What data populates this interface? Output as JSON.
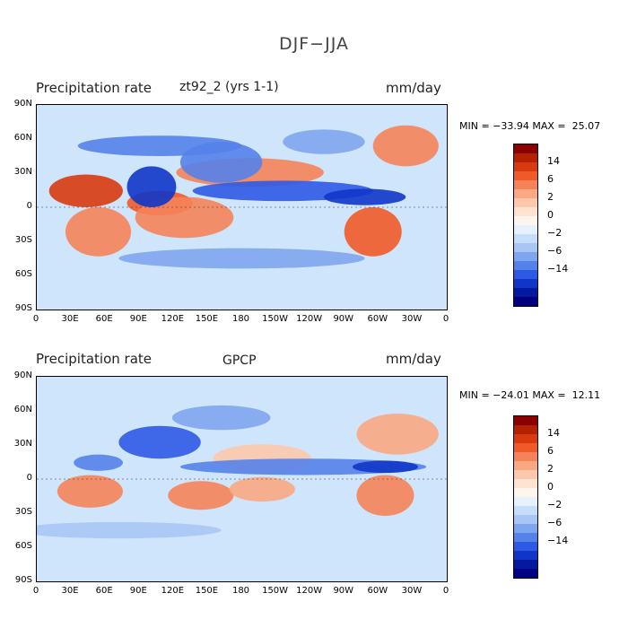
{
  "figure_title": "DJF−JJA",
  "colors": {
    "levels": [
      "#8b0000",
      "#b22200",
      "#d83a10",
      "#f05a28",
      "#f5835a",
      "#f9a882",
      "#fcc8ac",
      "#fde3d0",
      "#fff5ec",
      "#e5f1fd",
      "#c6def9",
      "#a7c6f4",
      "#7ea6ee",
      "#5582ea",
      "#2d5ae4",
      "#0f36c8",
      "#041a9e",
      "#000080"
    ]
  },
  "chart_data": [
    {
      "type": "heatmap",
      "title": "Precipitation rate",
      "subtitle": "zt92_2 (yrs 1-1)",
      "units": "mm/day",
      "stats": "MIN = −33.94 MAX =  25.07",
      "y_ticks": [
        "90N",
        "60N",
        "30N",
        "0",
        "30S",
        "60S",
        "90S"
      ],
      "x_ticks": [
        "0",
        "30E",
        "60E",
        "90E",
        "120E",
        "150E",
        "180",
        "150W",
        "120W",
        "90W",
        "60W",
        "30W",
        "0"
      ],
      "colorbar_labels": [
        "14",
        "6",
        "2",
        "0",
        "−2",
        "−6",
        "−14"
      ]
    },
    {
      "type": "heatmap",
      "title": "Precipitation rate",
      "subtitle": "GPCP",
      "units": "mm/day",
      "stats": "MIN = −24.01 MAX =  12.11",
      "y_ticks": [
        "90N",
        "60N",
        "30N",
        "0",
        "30S",
        "60S",
        "90S"
      ],
      "x_ticks": [
        "0",
        "30E",
        "60E",
        "90E",
        "120E",
        "150E",
        "180",
        "150W",
        "120W",
        "90W",
        "60W",
        "30W",
        "0"
      ],
      "colorbar_labels": [
        "14",
        "6",
        "2",
        "0",
        "−2",
        "−6",
        "−14"
      ]
    }
  ]
}
